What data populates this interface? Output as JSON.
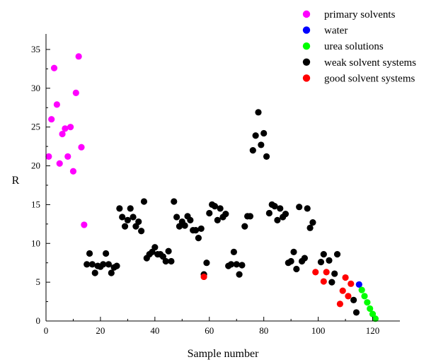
{
  "chart_data": {
    "type": "scatter",
    "xlabel": "Sample number",
    "ylabel": "R",
    "xlim": [
      0,
      130
    ],
    "ylim": [
      0,
      37
    ],
    "xticks": [
      0,
      20,
      40,
      60,
      80,
      100,
      120
    ],
    "yticks": [
      0,
      5,
      10,
      15,
      20,
      25,
      30,
      35
    ],
    "grid": false,
    "legend_position": "top-right",
    "series": [
      {
        "name": "primary solvents",
        "color": "#ff00ff",
        "points": [
          [
            1,
            21.2
          ],
          [
            2,
            26
          ],
          [
            3,
            32.6
          ],
          [
            4,
            27.9
          ],
          [
            5,
            20.3
          ],
          [
            6,
            24.1
          ],
          [
            7,
            24.8
          ],
          [
            8,
            21.2
          ],
          [
            9,
            25
          ],
          [
            10,
            19.3
          ],
          [
            11,
            29.4
          ],
          [
            12,
            34.1
          ],
          [
            13,
            22.4
          ],
          [
            14,
            12.4
          ]
        ]
      },
      {
        "name": "water",
        "color": "#0000ff",
        "points": [
          [
            115,
            4.7
          ]
        ]
      },
      {
        "name": "urea solutions",
        "color": "#00ff00",
        "points": [
          [
            116,
            4
          ],
          [
            117,
            3.2
          ],
          [
            118,
            2.4
          ],
          [
            119,
            1.6
          ],
          [
            120,
            0.9
          ],
          [
            121,
            0.3
          ]
        ]
      },
      {
        "name": "weak solvent systems",
        "color": "#000000",
        "points": [
          [
            15,
            7.3
          ],
          [
            16,
            8.7
          ],
          [
            17,
            7.3
          ],
          [
            18,
            6.2
          ],
          [
            19,
            7.1
          ],
          [
            20,
            7.0
          ],
          [
            21,
            7.3
          ],
          [
            22,
            8.7
          ],
          [
            23,
            7.3
          ],
          [
            24,
            6.2
          ],
          [
            25,
            6.9
          ],
          [
            26,
            7.1
          ],
          [
            27,
            14.5
          ],
          [
            28,
            13.4
          ],
          [
            29,
            12.2
          ],
          [
            30,
            13.0
          ],
          [
            31,
            14.5
          ],
          [
            32,
            13.4
          ],
          [
            33,
            12.2
          ],
          [
            34,
            12.8
          ],
          [
            35,
            11.6
          ],
          [
            36,
            15.4
          ],
          [
            37,
            8.1
          ],
          [
            38,
            8.6
          ],
          [
            39,
            8.9
          ],
          [
            40,
            9.5
          ],
          [
            41,
            8.6
          ],
          [
            42,
            8.6
          ],
          [
            43,
            8.3
          ],
          [
            44,
            7.7
          ],
          [
            45,
            9.0
          ],
          [
            46,
            7.7
          ],
          [
            47,
            15.4
          ],
          [
            48,
            13.4
          ],
          [
            49,
            12.2
          ],
          [
            50,
            12.8
          ],
          [
            51,
            12.3
          ],
          [
            52,
            13.5
          ],
          [
            53,
            13.0
          ],
          [
            54,
            11.7
          ],
          [
            55,
            11.7
          ],
          [
            56,
            10.7
          ],
          [
            57,
            11.9
          ],
          [
            58,
            6.0
          ],
          [
            59,
            7.5
          ],
          [
            60,
            13.9
          ],
          [
            61,
            15.0
          ],
          [
            62,
            14.8
          ],
          [
            63,
            13.0
          ],
          [
            64,
            14.5
          ],
          [
            65,
            13.4
          ],
          [
            66,
            13.8
          ],
          [
            67,
            7.1
          ],
          [
            68,
            7.3
          ],
          [
            69,
            8.9
          ],
          [
            70,
            7.3
          ],
          [
            71,
            6.0
          ],
          [
            72,
            7.2
          ],
          [
            73,
            12.2
          ],
          [
            74,
            13.5
          ],
          [
            75,
            13.5
          ],
          [
            76,
            22.0
          ],
          [
            77,
            23.9
          ],
          [
            78,
            26.9
          ],
          [
            79,
            22.7
          ],
          [
            80,
            24.2
          ],
          [
            81,
            21.2
          ],
          [
            82,
            13.9
          ],
          [
            83,
            15.0
          ],
          [
            84,
            14.8
          ],
          [
            85,
            13.0
          ],
          [
            86,
            14.5
          ],
          [
            87,
            13.4
          ],
          [
            88,
            13.8
          ],
          [
            89,
            7.5
          ],
          [
            90,
            7.7
          ],
          [
            91,
            8.9
          ],
          [
            92,
            6.7
          ],
          [
            93,
            14.7
          ],
          [
            94,
            7.7
          ],
          [
            95,
            8.1
          ],
          [
            96,
            14.5
          ],
          [
            97,
            12.0
          ],
          [
            98,
            12.7
          ],
          [
            101,
            7.6
          ],
          [
            102,
            8.6
          ],
          [
            104,
            7.8
          ],
          [
            105,
            5.0
          ],
          [
            106,
            6.1
          ],
          [
            107,
            8.6
          ],
          [
            113,
            2.7
          ],
          [
            114,
            1.1
          ]
        ]
      },
      {
        "name": "good solvent systems",
        "color": "#ff0000",
        "points": [
          [
            58,
            5.7
          ],
          [
            99,
            6.3
          ],
          [
            102,
            5.1
          ],
          [
            103,
            6.3
          ],
          [
            108,
            2.2
          ],
          [
            109,
            3.9
          ],
          [
            110,
            5.6
          ],
          [
            111,
            3.2
          ],
          [
            112,
            4.8
          ]
        ]
      }
    ]
  }
}
